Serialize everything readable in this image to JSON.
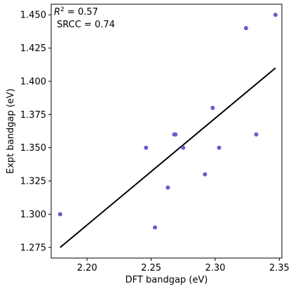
{
  "chart_data": {
    "type": "scatter",
    "xlabel": "DFT bandgap (eV)",
    "ylabel": "Expt bandgap (eV)",
    "xlim": [
      2.172,
      2.352
    ],
    "ylim": [
      1.267,
      1.458
    ],
    "xticks": [
      2.2,
      2.25,
      2.3,
      2.35
    ],
    "xtick_labels": [
      "2.20",
      "2.25",
      "2.30",
      "2.35"
    ],
    "yticks": [
      1.275,
      1.3,
      1.325,
      1.35,
      1.375,
      1.4,
      1.425,
      1.45
    ],
    "ytick_labels": [
      "1.275",
      "1.300",
      "1.325",
      "1.350",
      "1.375",
      "1.400",
      "1.425",
      "1.450"
    ],
    "grid": false,
    "points": {
      "x": [
        2.179,
        2.246,
        2.253,
        2.263,
        2.268,
        2.269,
        2.275,
        2.292,
        2.298,
        2.303,
        2.324,
        2.332,
        2.347
      ],
      "y": [
        1.3,
        1.35,
        1.29,
        1.32,
        1.36,
        1.36,
        1.35,
        1.33,
        1.38,
        1.35,
        1.44,
        1.36,
        1.45
      ],
      "color": "#6a5acd"
    },
    "fit_line": {
      "x": [
        2.179,
        2.347
      ],
      "y": [
        1.275,
        1.41
      ],
      "color": "#000000"
    },
    "annotations": {
      "r2_label": "R",
      "r2_sup": "2",
      "r2_value": " = 0.57",
      "srcc": "SRCC = 0.74"
    }
  }
}
